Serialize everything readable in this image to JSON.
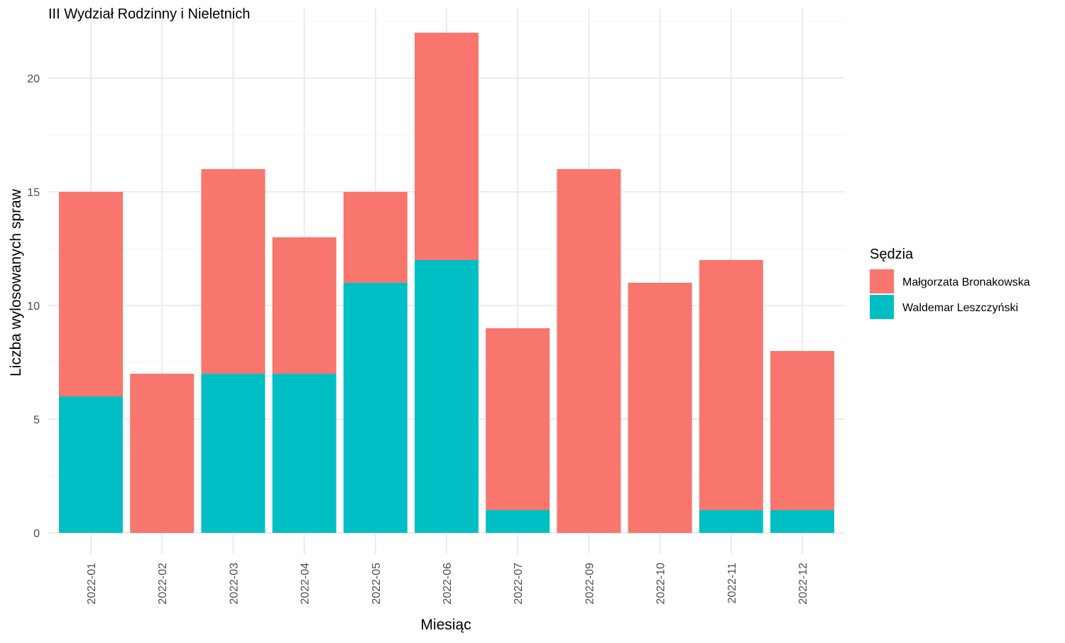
{
  "chart_data": {
    "type": "bar",
    "stacked": true,
    "title": "III Wydział Rodzinny i Nieletnich",
    "xlabel": "Miesiąc",
    "ylabel": "Liczba wylosowanych spraw",
    "categories": [
      "2022-01",
      "2022-02",
      "2022-03",
      "2022-04",
      "2022-05",
      "2022-06",
      "2022-07",
      "2022-09",
      "2022-10",
      "2022-11",
      "2022-12"
    ],
    "series": [
      {
        "name": "Waldemar Leszczyński",
        "color": "#00BFC4",
        "values": [
          6,
          0,
          7,
          7,
          11,
          12,
          1,
          0,
          0,
          1,
          1
        ]
      },
      {
        "name": "Małgorzata Bronakowska",
        "color": "#F8766D",
        "values": [
          9,
          7,
          9,
          6,
          4,
          10,
          8,
          16,
          11,
          11,
          7
        ]
      }
    ],
    "legend": {
      "title": "Sędzia",
      "position": "right",
      "items": [
        "Małgorzata Bronakowska",
        "Waldemar Leszczyński"
      ]
    },
    "ylim": [
      0,
      22
    ],
    "yticks": [
      0,
      5,
      10,
      15,
      20
    ],
    "grid": true,
    "x_tick_rotation": -90
  }
}
